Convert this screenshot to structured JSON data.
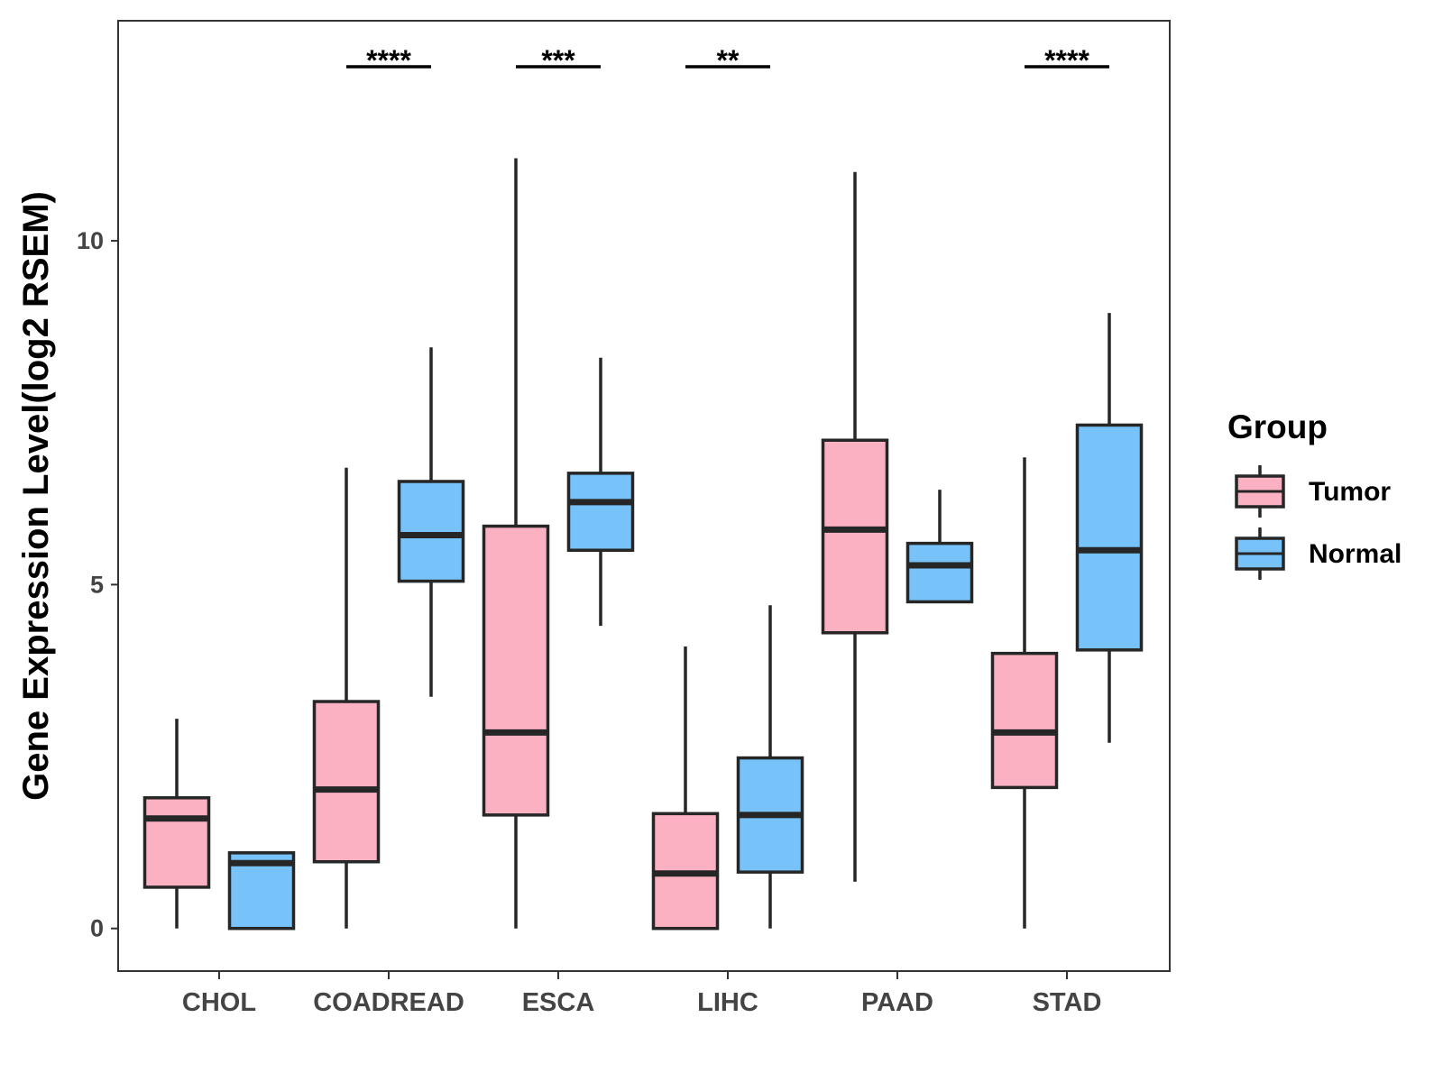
{
  "chart_data": {
    "type": "boxplot",
    "title": "",
    "xlabel": "",
    "ylabel": "Gene Expression Level(log2 RSEM)",
    "ylim": [
      -0.62,
      13.2
    ],
    "yticks": [
      0,
      5,
      10
    ],
    "grid": false,
    "categories": [
      "CHOL",
      "COADREAD",
      "ESCA",
      "LIHC",
      "PAAD",
      "STAD"
    ],
    "series": [
      {
        "name": "Tumor",
        "color": "#FBB1C2",
        "boxes": [
          {
            "min": 0.0,
            "q1": 0.6,
            "median": 1.6,
            "q3": 1.9,
            "max": 3.05
          },
          {
            "min": 0.0,
            "q1": 0.97,
            "median": 2.02,
            "q3": 3.3,
            "max": 6.7
          },
          {
            "min": 0.0,
            "q1": 1.65,
            "median": 2.85,
            "q3": 5.85,
            "max": 11.2
          },
          {
            "min": 0.0,
            "q1": 0.0,
            "median": 0.8,
            "q3": 1.67,
            "max": 4.1
          },
          {
            "min": 0.68,
            "q1": 4.3,
            "median": 5.8,
            "q3": 7.1,
            "max": 11.0
          },
          {
            "min": 0.0,
            "q1": 2.05,
            "median": 2.85,
            "q3": 4.0,
            "max": 6.85
          }
        ]
      },
      {
        "name": "Normal",
        "color": "#77C2F9",
        "boxes": [
          {
            "min": 0.0,
            "q1": 0.0,
            "median": 0.95,
            "q3": 1.1,
            "max": 1.1
          },
          {
            "min": 3.37,
            "q1": 5.05,
            "median": 5.72,
            "q3": 6.5,
            "max": 8.45
          },
          {
            "min": 4.4,
            "q1": 5.5,
            "median": 6.2,
            "q3": 6.62,
            "max": 8.3
          },
          {
            "min": 0.0,
            "q1": 0.82,
            "median": 1.65,
            "q3": 2.48,
            "max": 4.7
          },
          {
            "min": 4.75,
            "q1": 4.75,
            "median": 5.28,
            "q3": 5.6,
            "max": 6.38
          },
          {
            "min": 2.7,
            "q1": 4.05,
            "median": 5.5,
            "q3": 7.32,
            "max": 8.95
          }
        ]
      }
    ],
    "annotations": [
      {
        "category": "COADREAD",
        "label": "****"
      },
      {
        "category": "ESCA",
        "label": "***"
      },
      {
        "category": "LIHC",
        "label": "**"
      },
      {
        "category": "STAD",
        "label": "****"
      }
    ],
    "legend": {
      "title": "Group",
      "position": "right",
      "entries": [
        "Tumor",
        "Normal"
      ]
    }
  }
}
